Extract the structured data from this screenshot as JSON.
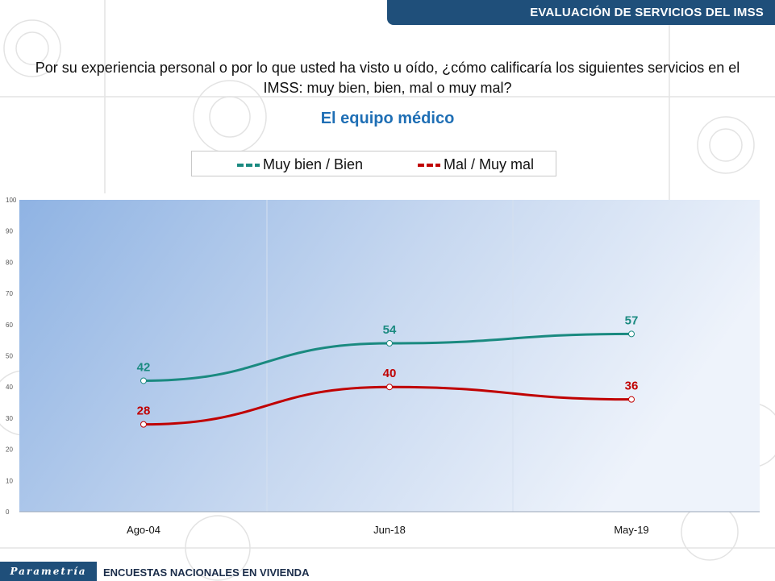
{
  "header": {
    "title": "EVALUACIÓN DE SERVICIOS DEL IMSS"
  },
  "question": "Por su experiencia personal o por lo que usted ha visto u oído, ¿cómo calificaría los siguientes servicios en el IMSS: muy bien, bien, mal o muy mal?",
  "subtitle": "El equipo médico",
  "legend": [
    {
      "label": "Muy bien / Bien",
      "color": "#1a8a80"
    },
    {
      "label": "Mal / Muy mal",
      "color": "#c00000"
    }
  ],
  "footer": {
    "logo": "Parametría",
    "text": "ENCUESTAS NACIONALES  EN VIVIENDA"
  },
  "chart_data": {
    "type": "line",
    "categories": [
      "Ago-04",
      "Jun-18",
      "May-19"
    ],
    "series": [
      {
        "name": "Muy bien / Bien",
        "values": [
          42,
          54,
          57
        ],
        "color": "#1a8a80"
      },
      {
        "name": "Mal / Muy mal",
        "values": [
          28,
          40,
          36
        ],
        "color": "#c00000"
      }
    ],
    "ylim": [
      0,
      100
    ],
    "yticks": [
      0,
      10,
      20,
      30,
      40,
      50,
      60,
      70,
      80,
      90,
      100
    ],
    "grid": true,
    "legend_position": "top"
  }
}
